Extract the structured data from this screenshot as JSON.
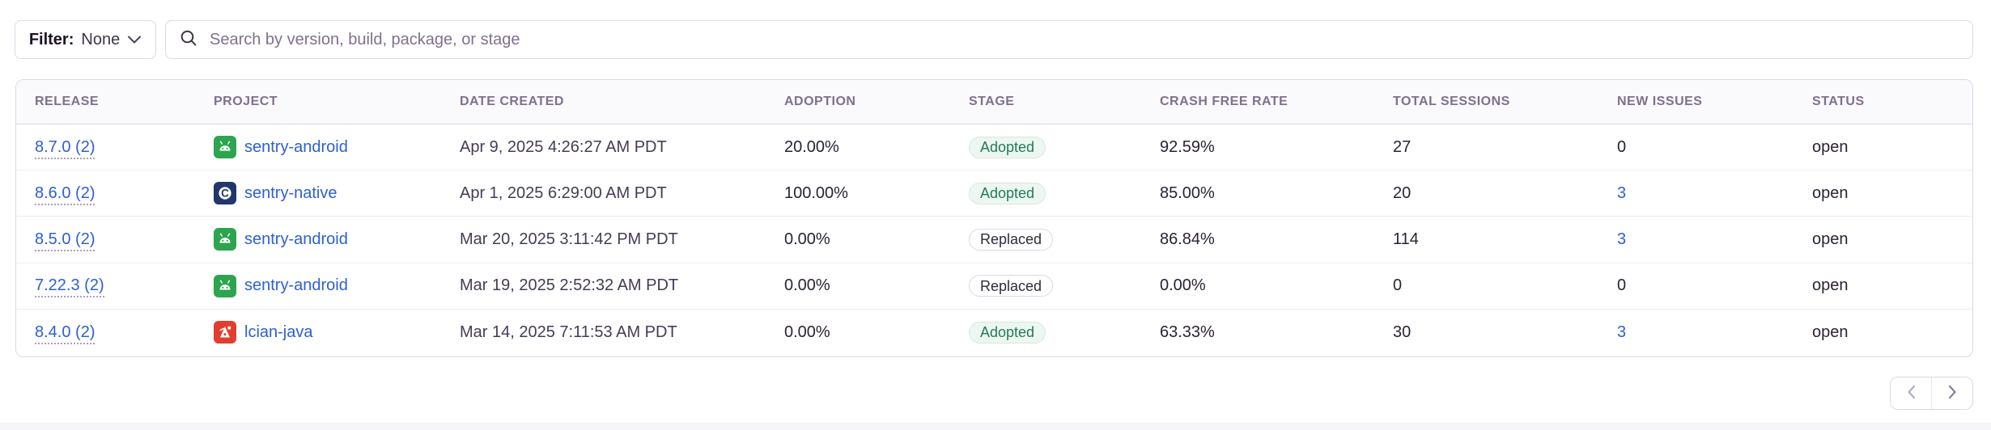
{
  "filter": {
    "label": "Filter:",
    "value": "None",
    "icon": "chevron-down-icon"
  },
  "search": {
    "placeholder": "Search by version, build, package, or stage",
    "icon": "search-icon"
  },
  "table": {
    "columns": [
      "RELEASE",
      "PROJECT",
      "DATE CREATED",
      "ADOPTION",
      "STAGE",
      "CRASH FREE RATE",
      "TOTAL SESSIONS",
      "NEW ISSUES",
      "STATUS"
    ],
    "rows": [
      {
        "release": "8.7.0 (2)",
        "project": "sentry-android",
        "platform_icon": "android-icon",
        "date_created": "Apr 9, 2025 4:26:27 AM PDT",
        "adoption": "20.00%",
        "stage": "Adopted",
        "stage_variant": "adopted",
        "crash_free_rate": "92.59%",
        "total_sessions": "27",
        "new_issues": "0",
        "new_issues_is_link": false,
        "status": "open"
      },
      {
        "release": "8.6.0 (2)",
        "project": "sentry-native",
        "platform_icon": "c-icon",
        "date_created": "Apr 1, 2025 6:29:00 AM PDT",
        "adoption": "100.00%",
        "stage": "Adopted",
        "stage_variant": "adopted",
        "crash_free_rate": "85.00%",
        "total_sessions": "20",
        "new_issues": "3",
        "new_issues_is_link": true,
        "status": "open"
      },
      {
        "release": "8.5.0 (2)",
        "project": "sentry-android",
        "platform_icon": "android-icon",
        "date_created": "Mar 20, 2025 3:11:42 PM PDT",
        "adoption": "0.00%",
        "stage": "Replaced",
        "stage_variant": "replaced",
        "crash_free_rate": "86.84%",
        "total_sessions": "114",
        "new_issues": "3",
        "new_issues_is_link": true,
        "status": "open"
      },
      {
        "release": "7.22.3 (2)",
        "project": "sentry-android",
        "platform_icon": "android-icon",
        "date_created": "Mar 19, 2025 2:52:32 AM PDT",
        "adoption": "0.00%",
        "stage": "Replaced",
        "stage_variant": "replaced",
        "crash_free_rate": "0.00%",
        "total_sessions": "0",
        "new_issues": "0",
        "new_issues_is_link": false,
        "status": "open"
      },
      {
        "release": "8.4.0 (2)",
        "project": "lcian-java",
        "platform_icon": "java-icon",
        "date_created": "Mar 14, 2025 7:11:53 AM PDT",
        "adoption": "0.00%",
        "stage": "Adopted",
        "stage_variant": "adopted",
        "crash_free_rate": "63.33%",
        "total_sessions": "30",
        "new_issues": "3",
        "new_issues_is_link": true,
        "status": "open"
      }
    ]
  },
  "pagination": {
    "previous_icon": "chevron-left-icon",
    "next_icon": "chevron-right-icon"
  },
  "colors": {
    "link_blue": "#2c5fd6",
    "adopted_green": "#227a58",
    "adopted_bg": "#edf7f2",
    "android_green": "#2da44e",
    "native_navy": "#20376b",
    "java_red": "#e03e2f",
    "header_text": "#80708f",
    "border": "#dcd8e4"
  }
}
